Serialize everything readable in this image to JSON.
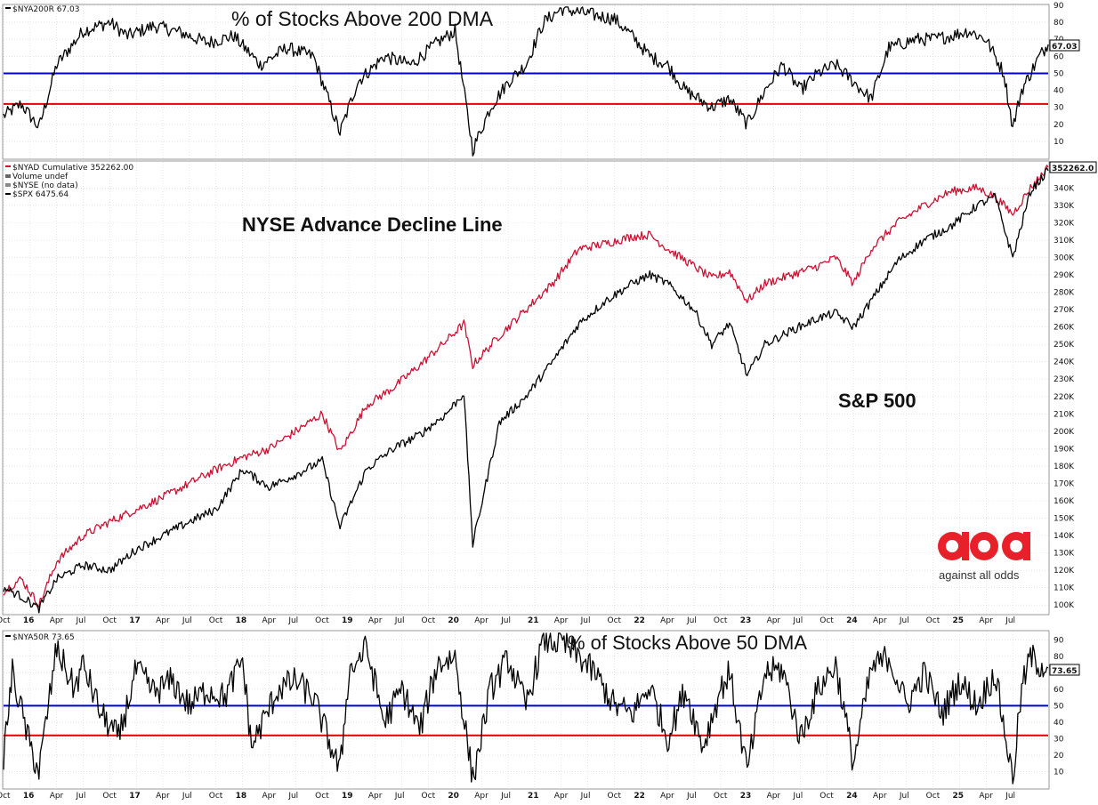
{
  "colors": {
    "black": "#000000",
    "red": "#cc1133",
    "blue": "#0000cc",
    "redline": "#dd0000",
    "grid": "#d8d8d8",
    "logo_red": "#e8202a"
  },
  "x_axis": {
    "labels": [
      "Oct",
      "16",
      "Apr",
      "Jul",
      "Oct",
      "17",
      "Apr",
      "Jul",
      "Oct",
      "18",
      "Apr",
      "Jul",
      "Oct",
      "19",
      "Apr",
      "Jul",
      "Oct",
      "20",
      "Apr",
      "Jul",
      "21",
      "Apr",
      "Jul",
      "Oct",
      "22",
      "Apr",
      "Jul",
      "Oct",
      "23",
      "Apr",
      "Jul",
      "Oct",
      "24",
      "Apr",
      "Jul",
      "Oct",
      "25",
      "Apr",
      "Jul"
    ],
    "range": [
      "2015-10",
      "2025-08"
    ]
  },
  "panels": {
    "top": {
      "legend": "$NYA200R 67.03",
      "title": "% of Stocks Above 200 DMA",
      "last_value": "67.03",
      "ticks": [
        "90",
        "80",
        "70",
        "60",
        "50",
        "40",
        "30",
        "20",
        "10"
      ]
    },
    "middle": {
      "legend": [
        "$NYAD Cumulative 352262.00",
        "Volume undef",
        "$NYSE (no data)",
        "$SPX 6475.64"
      ],
      "title": "NYSE Advance Decline Line",
      "series_label": "S&P 500",
      "last_value": "352262.0",
      "ticks": [
        "340K",
        "330K",
        "320K",
        "310K",
        "300K",
        "290K",
        "280K",
        "270K",
        "260K",
        "250K",
        "240K",
        "230K",
        "220K",
        "210K",
        "200K",
        "190K",
        "180K",
        "170K",
        "160K",
        "150K",
        "140K",
        "130K",
        "120K",
        "110K",
        "100K"
      ]
    },
    "bottom": {
      "legend": "$NYA50R 73.65",
      "title": "% of Stocks Above 50 DMA",
      "last_value": "73.65",
      "ticks": [
        "90",
        "80",
        "70",
        "60",
        "50",
        "40",
        "30",
        "20",
        "10"
      ]
    }
  },
  "logo": {
    "text": "against all odds"
  },
  "chart_data": [
    {
      "type": "line",
      "title": "% of Stocks Above 200 DMA",
      "ylim": [
        0,
        90
      ],
      "reference_lines": [
        50,
        32
      ],
      "series": [
        {
          "name": "$NYA200R",
          "x": [
            "2015-10",
            "2015-12",
            "2016-02",
            "2016-04",
            "2016-07",
            "2016-10",
            "2016-12",
            "2017-03",
            "2017-06",
            "2017-09",
            "2017-12",
            "2018-03",
            "2018-06",
            "2018-09",
            "2018-12",
            "2019-02",
            "2019-05",
            "2019-08",
            "2019-11",
            "2020-01",
            "2020-03",
            "2020-05",
            "2020-07",
            "2020-09",
            "2020-11",
            "2021-01",
            "2021-04",
            "2021-07",
            "2021-09",
            "2021-11",
            "2022-01",
            "2022-03",
            "2022-06",
            "2022-08",
            "2022-10",
            "2022-12",
            "2023-02",
            "2023-04",
            "2023-06",
            "2023-08",
            "2023-10",
            "2023-12",
            "2024-02",
            "2024-05",
            "2024-07",
            "2024-09",
            "2024-11",
            "2025-01",
            "2025-03",
            "2025-04",
            "2025-05",
            "2025-06",
            "2025-07",
            "2025-08"
          ],
          "y": [
            25,
            32,
            18,
            55,
            75,
            80,
            72,
            78,
            74,
            68,
            72,
            55,
            65,
            60,
            15,
            45,
            60,
            55,
            68,
            75,
            5,
            30,
            45,
            55,
            80,
            88,
            85,
            82,
            72,
            60,
            55,
            40,
            30,
            35,
            20,
            40,
            55,
            40,
            50,
            55,
            45,
            35,
            65,
            70,
            70,
            72,
            75,
            70,
            50,
            18,
            40,
            50,
            60,
            67
          ]
        }
      ]
    },
    {
      "type": "line",
      "title": "NYSE Advance Decline Line",
      "ylim": [
        95000,
        355000
      ],
      "series": [
        {
          "name": "$NYAD Cumulative",
          "x": [
            "2015-10",
            "2015-12",
            "2016-02",
            "2016-04",
            "2016-07",
            "2016-10",
            "2017-01",
            "2017-04",
            "2017-07",
            "2017-10",
            "2018-01",
            "2018-04",
            "2018-07",
            "2018-10",
            "2018-12",
            "2019-03",
            "2019-06",
            "2019-09",
            "2019-12",
            "2020-02",
            "2020-03",
            "2020-06",
            "2020-09",
            "2020-12",
            "2021-03",
            "2021-06",
            "2021-09",
            "2021-11",
            "2022-01",
            "2022-04",
            "2022-06",
            "2022-08",
            "2022-10",
            "2022-12",
            "2023-03",
            "2023-06",
            "2023-08",
            "2023-10",
            "2023-12",
            "2024-03",
            "2024-06",
            "2024-09",
            "2024-12",
            "2025-02",
            "2025-04",
            "2025-06",
            "2025-08"
          ],
          "y": [
            108000,
            115000,
            100000,
            125000,
            140000,
            148000,
            155000,
            162000,
            170000,
            178000,
            185000,
            190000,
            200000,
            210000,
            188000,
            215000,
            225000,
            238000,
            252000,
            262000,
            238000,
            255000,
            270000,
            285000,
            305000,
            308000,
            312000,
            313000,
            305000,
            295000,
            288000,
            292000,
            275000,
            285000,
            290000,
            295000,
            300000,
            285000,
            305000,
            320000,
            330000,
            338000,
            340000,
            335000,
            325000,
            340000,
            352000
          ]
        },
        {
          "name": "$SPX",
          "x": [
            "2015-10",
            "2015-12",
            "2016-02",
            "2016-04",
            "2016-07",
            "2016-10",
            "2017-01",
            "2017-04",
            "2017-07",
            "2017-10",
            "2018-01",
            "2018-04",
            "2018-07",
            "2018-10",
            "2018-12",
            "2019-03",
            "2019-06",
            "2019-09",
            "2019-12",
            "2020-02",
            "2020-03",
            "2020-06",
            "2020-09",
            "2020-12",
            "2021-03",
            "2021-06",
            "2021-09",
            "2021-11",
            "2022-01",
            "2022-04",
            "2022-06",
            "2022-08",
            "2022-10",
            "2022-12",
            "2023-03",
            "2023-06",
            "2023-08",
            "2023-10",
            "2023-12",
            "2024-03",
            "2024-06",
            "2024-09",
            "2024-12",
            "2025-02",
            "2025-04",
            "2025-06",
            "2025-08"
          ],
          "y": [
            110000,
            105000,
            98000,
            115000,
            123000,
            120000,
            132000,
            140000,
            148000,
            155000,
            178000,
            168000,
            175000,
            183000,
            145000,
            178000,
            190000,
            198000,
            210000,
            222000,
            135000,
            205000,
            220000,
            240000,
            262000,
            275000,
            285000,
            290000,
            285000,
            270000,
            250000,
            262000,
            232000,
            250000,
            258000,
            265000,
            268000,
            260000,
            275000,
            298000,
            310000,
            318000,
            330000,
            335000,
            300000,
            338000,
            350000
          ]
        }
      ]
    },
    {
      "type": "line",
      "title": "% of Stocks Above 50 DMA",
      "ylim": [
        0,
        95
      ],
      "reference_lines": [
        50,
        32
      ],
      "series": [
        {
          "name": "$NYA50R",
          "x": [
            "2015-10",
            "2015-11",
            "2016-01",
            "2016-02",
            "2016-04",
            "2016-06",
            "2016-07",
            "2016-09",
            "2016-11",
            "2017-01",
            "2017-03",
            "2017-05",
            "2017-07",
            "2017-09",
            "2017-11",
            "2018-01",
            "2018-02",
            "2018-05",
            "2018-07",
            "2018-09",
            "2018-12",
            "2019-01",
            "2019-03",
            "2019-05",
            "2019-07",
            "2019-09",
            "2019-11",
            "2020-01",
            "2020-03",
            "2020-05",
            "2020-07",
            "2020-09",
            "2020-11",
            "2021-01",
            "2021-03",
            "2021-05",
            "2021-07",
            "2021-09",
            "2021-11",
            "2022-01",
            "2022-03",
            "2022-05",
            "2022-07",
            "2022-08",
            "2022-10",
            "2022-12",
            "2023-02",
            "2023-04",
            "2023-06",
            "2023-08",
            "2023-10",
            "2023-12",
            "2024-02",
            "2024-04",
            "2024-06",
            "2024-08",
            "2024-10",
            "2024-12",
            "2025-02",
            "2025-04",
            "2025-05",
            "2025-06",
            "2025-07",
            "2025-08"
          ],
          "y": [
            20,
            70,
            25,
            10,
            85,
            60,
            75,
            45,
            30,
            72,
            58,
            65,
            50,
            60,
            55,
            78,
            25,
            60,
            65,
            55,
            10,
            70,
            85,
            40,
            60,
            35,
            75,
            80,
            5,
            60,
            78,
            50,
            90,
            88,
            80,
            68,
            50,
            45,
            62,
            30,
            60,
            25,
            60,
            70,
            10,
            70,
            72,
            30,
            60,
            75,
            15,
            72,
            80,
            50,
            70,
            45,
            65,
            50,
            70,
            5,
            60,
            80,
            75,
            73
          ]
        }
      ]
    }
  ]
}
